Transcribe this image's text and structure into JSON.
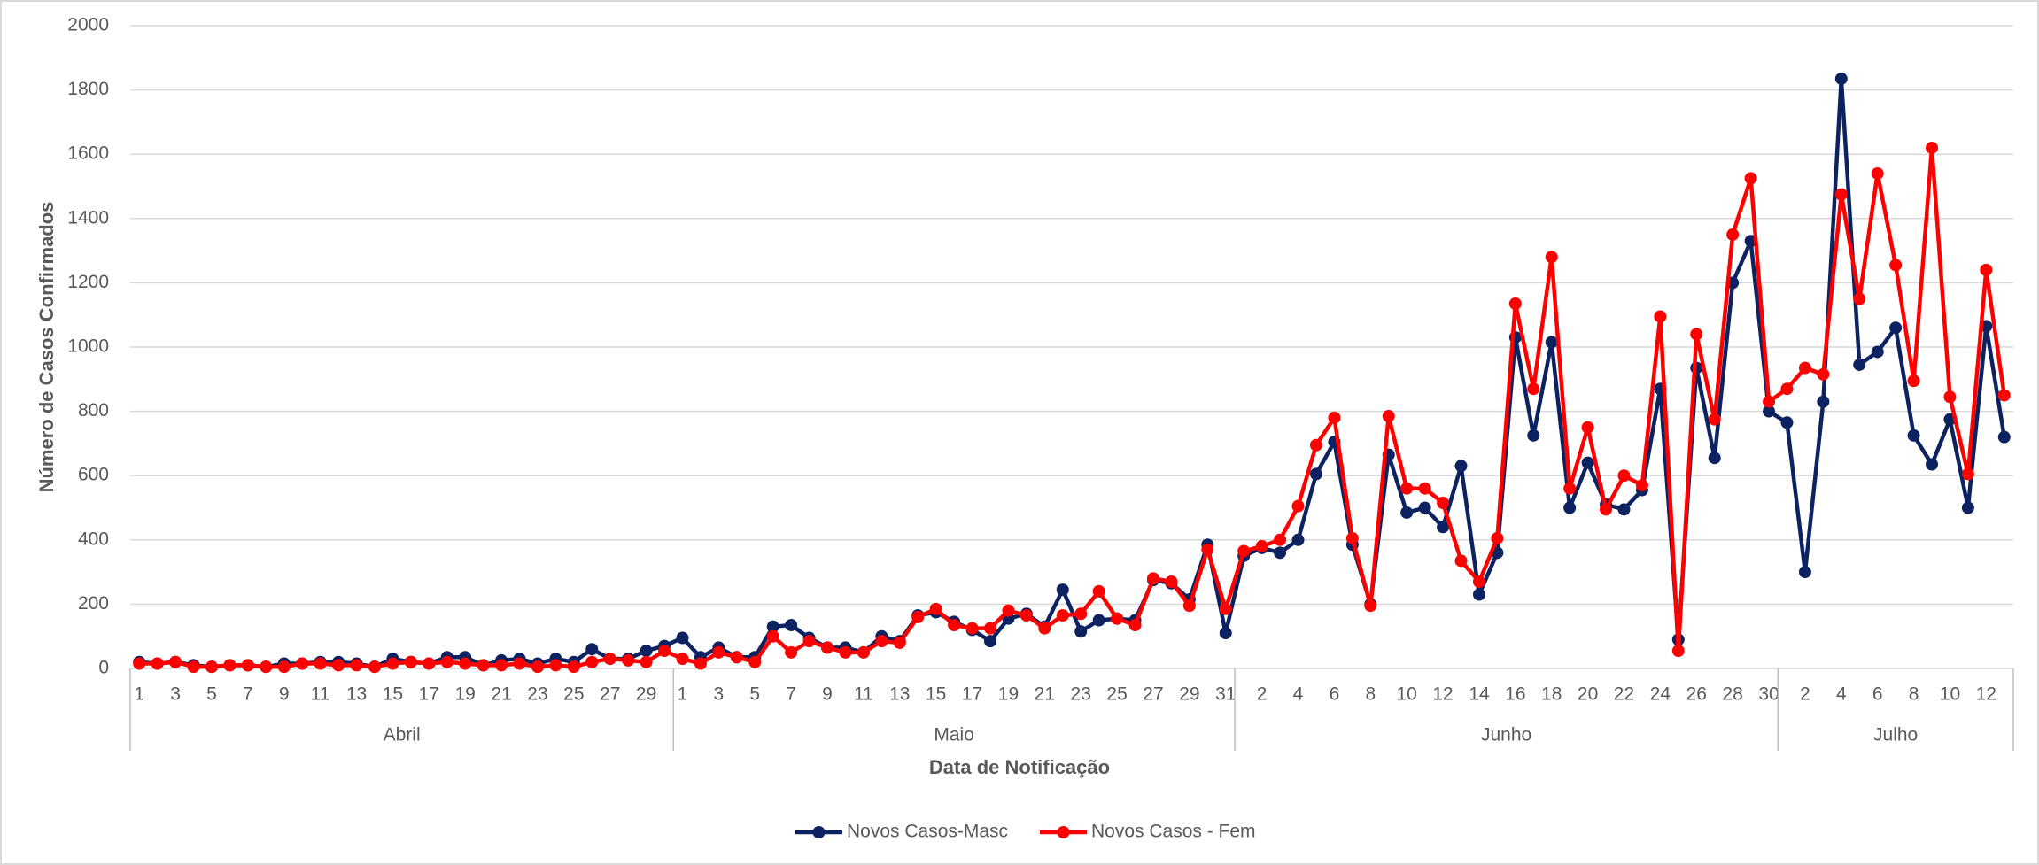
{
  "chart_data": {
    "type": "line",
    "x_label": "Data de Notificação",
    "y_label": "Número de Casos Confirmados",
    "groups": [
      {
        "label": "Abril",
        "categories": [
          "1",
          null,
          "3",
          null,
          "5",
          null,
          "7",
          null,
          "9",
          null,
          "11",
          null,
          "13",
          null,
          "15",
          null,
          "17",
          null,
          "19",
          null,
          "21",
          null,
          "23",
          null,
          "25",
          null,
          "27",
          null,
          "29",
          null
        ]
      },
      {
        "label": "Maio",
        "categories": [
          "1",
          null,
          "3",
          null,
          "5",
          null,
          "7",
          null,
          "9",
          null,
          "11",
          null,
          "13",
          null,
          "15",
          null,
          "17",
          null,
          "19",
          null,
          "21",
          null,
          "23",
          null,
          "25",
          null,
          "27",
          null,
          "29",
          null,
          "31"
        ]
      },
      {
        "label": "Junho",
        "categories": [
          null,
          "2",
          null,
          "4",
          null,
          "6",
          null,
          "8",
          null,
          "10",
          null,
          "12",
          null,
          "14",
          null,
          "16",
          null,
          "18",
          null,
          "20",
          null,
          "22",
          null,
          "24",
          null,
          "26",
          null,
          "28",
          null,
          "30"
        ]
      },
      {
        "label": "Julho",
        "categories": [
          null,
          "2",
          null,
          "4",
          null,
          "6",
          null,
          "8",
          null,
          "10",
          null,
          "12",
          null
        ]
      }
    ],
    "series": [
      {
        "name": "Novos Casos-Masc",
        "color": "#0d2260",
        "values": [
          20,
          15,
          20,
          10,
          5,
          10,
          10,
          5,
          15,
          15,
          20,
          20,
          15,
          5,
          30,
          20,
          15,
          35,
          35,
          10,
          25,
          30,
          15,
          30,
          20,
          60,
          30,
          30,
          55,
          70,
          95,
          35,
          65,
          35,
          35,
          130,
          135,
          95,
          65,
          65,
          50,
          100,
          85,
          165,
          175,
          145,
          120,
          85,
          155,
          170,
          130,
          245,
          115,
          150,
          155,
          150,
          275,
          265,
          215,
          385,
          110,
          350,
          375,
          360,
          400,
          605,
          705,
          385,
          200,
          665,
          485,
          500,
          440,
          630,
          230,
          360,
          1030,
          725,
          1015,
          500,
          640,
          510,
          495,
          555,
          870,
          90,
          935,
          655,
          1200,
          1330,
          800,
          765,
          300,
          830,
          1835,
          945,
          985,
          1060,
          725,
          635,
          775,
          500,
          1065,
          720
        ]
      },
      {
        "name": "Novos Casos - Fem",
        "color": "#ff0000",
        "values": [
          15,
          15,
          20,
          5,
          5,
          10,
          10,
          5,
          5,
          15,
          15,
          10,
          10,
          5,
          15,
          20,
          15,
          20,
          15,
          10,
          10,
          15,
          5,
          10,
          5,
          20,
          30,
          25,
          20,
          55,
          30,
          15,
          50,
          35,
          20,
          100,
          50,
          85,
          65,
          50,
          50,
          85,
          80,
          160,
          185,
          135,
          125,
          125,
          180,
          165,
          125,
          165,
          170,
          240,
          155,
          135,
          280,
          270,
          195,
          370,
          185,
          365,
          380,
          400,
          505,
          695,
          780,
          405,
          195,
          785,
          560,
          560,
          515,
          335,
          270,
          405,
          1135,
          870,
          1280,
          560,
          750,
          495,
          600,
          570,
          1095,
          55,
          1040,
          775,
          1350,
          1525,
          830,
          870,
          935,
          915,
          1475,
          1150,
          1540,
          1255,
          895,
          1620,
          845,
          605,
          1240,
          850
        ]
      }
    ],
    "ylim": [
      0,
      2000
    ],
    "yticks": [
      0,
      200,
      400,
      600,
      800,
      1000,
      1200,
      1400,
      1600,
      1800,
      2000
    ],
    "grid": true,
    "legend": "bottom"
  }
}
